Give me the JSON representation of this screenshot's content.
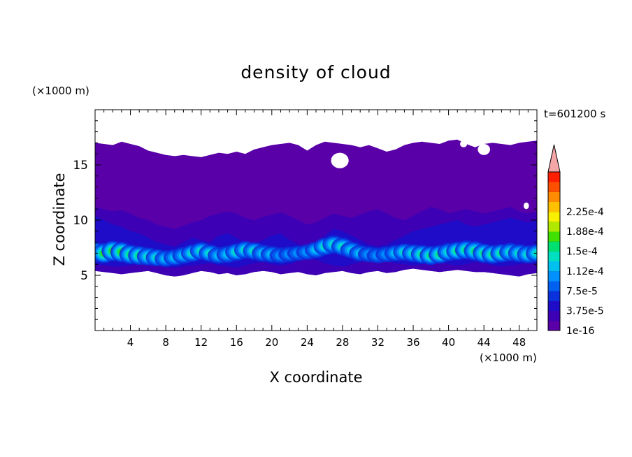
{
  "chart_data": {
    "type": "heatmap",
    "title": "density of cloud",
    "time_label": "t=601200 s",
    "xlabel": "X coordinate",
    "ylabel": "Z coordinate",
    "x_unit": "(×1000 m)",
    "y_unit": "(×1000 m)",
    "xlim": [
      0,
      50
    ],
    "ylim": [
      0,
      20
    ],
    "x_ticks": [
      4,
      8,
      12,
      16,
      20,
      24,
      28,
      32,
      36,
      40,
      44,
      48
    ],
    "y_ticks": [
      5,
      10,
      15
    ],
    "colorbar": {
      "levels": [
        "1e-16",
        "3.75e-5",
        "7.5e-5",
        "1.12e-4",
        "1.5e-4",
        "1.88e-4",
        "2.25e-4"
      ],
      "colors": [
        "#5a00a8",
        "#3e00b4",
        "#1e0cc8",
        "#0a32dc",
        "#0060f0",
        "#0090ff",
        "#00c0f0",
        "#00e0c0",
        "#00e070",
        "#40e000",
        "#b0e800",
        "#f8f000",
        "#ffc000",
        "#ff8c00",
        "#ff5000",
        "#ff1e00"
      ],
      "extend_color": "#f4a6a6"
    },
    "cloud": {
      "outer_top": [
        17.0,
        16.9,
        16.8,
        17.1,
        16.9,
        16.7,
        16.3,
        16.1,
        15.9,
        15.8,
        15.9,
        15.8,
        15.7,
        15.9,
        16.1,
        16.0,
        16.2,
        16.0,
        16.4,
        16.6,
        16.8,
        16.9,
        17.0,
        16.8,
        16.3,
        16.8,
        17.1,
        17.0,
        16.9,
        16.8,
        16.6,
        16.8,
        16.5,
        16.2,
        16.4,
        16.8,
        17.0,
        17.1,
        17.0,
        16.9,
        17.2,
        17.3,
        16.9,
        16.6,
        16.9,
        17.0,
        16.9,
        16.8,
        17.0,
        17.1,
        17.2
      ],
      "outer_bottom": [
        5.4,
        5.3,
        5.2,
        5.1,
        5.2,
        5.3,
        5.4,
        5.2,
        5.0,
        4.9,
        5.0,
        5.2,
        5.4,
        5.3,
        5.1,
        5.2,
        5.0,
        5.1,
        5.3,
        5.4,
        5.3,
        5.1,
        5.2,
        5.3,
        5.1,
        5.0,
        5.2,
        5.3,
        5.4,
        5.2,
        5.1,
        5.3,
        5.4,
        5.2,
        5.3,
        5.5,
        5.6,
        5.5,
        5.4,
        5.3,
        5.4,
        5.5,
        5.4,
        5.3,
        5.3,
        5.2,
        5.1,
        5.0,
        4.9,
        5.1,
        5.2
      ],
      "mid_top": [
        11.2,
        11.0,
        10.8,
        10.9,
        10.6,
        10.2,
        10.0,
        9.6,
        9.4,
        9.2,
        9.5,
        9.8,
        10.0,
        10.4,
        10.6,
        10.8,
        10.6,
        10.2,
        10.0,
        10.3,
        10.5,
        10.7,
        10.4,
        10.0,
        9.6,
        9.8,
        10.2,
        10.6,
        10.4,
        10.2,
        10.5,
        10.8,
        11.0,
        10.6,
        10.2,
        10.0,
        10.4,
        10.8,
        11.2,
        11.0,
        10.6,
        10.8,
        11.0,
        10.8,
        10.6,
        10.8,
        11.0,
        11.2,
        10.8,
        10.6,
        10.8
      ],
      "dense_top": [
        10.4,
        10.0,
        9.6,
        9.4,
        9.0,
        8.8,
        8.4,
        8.0,
        7.8,
        7.6,
        8.0,
        8.4,
        8.2,
        8.0,
        8.6,
        8.8,
        8.4,
        8.0,
        7.8,
        8.2,
        8.6,
        8.8,
        8.2,
        7.8,
        7.4,
        7.8,
        8.6,
        9.2,
        9.0,
        8.6,
        8.2,
        7.8,
        7.6,
        7.8,
        8.2,
        8.6,
        9.0,
        9.2,
        9.4,
        9.6,
        9.8,
        10.0,
        9.6,
        9.4,
        9.6,
        9.8,
        10.0,
        10.2,
        10.0,
        9.8,
        10.0
      ],
      "dense_bottom": [
        6.0,
        5.9,
        5.8,
        5.8,
        5.9,
        6.0,
        6.1,
        6.0,
        5.8,
        5.7,
        5.8,
        5.9,
        6.0,
        6.1,
        5.9,
        5.8,
        5.7,
        5.9,
        6.1,
        6.2,
        6.0,
        5.9,
        6.0,
        6.3,
        6.5,
        6.4,
        6.1,
        5.9,
        5.8,
        6.0,
        6.2,
        6.4,
        6.5,
        6.3,
        6.1,
        6.0,
        5.9,
        6.0,
        6.1,
        6.2,
        6.0,
        5.9,
        6.0,
        6.2,
        6.1,
        5.9,
        5.8,
        5.9,
        6.0,
        6.1,
        6.0
      ],
      "core_center": [
        7.1,
        7.0,
        7.2,
        7.1,
        6.9,
        6.8,
        6.7,
        6.6,
        6.5,
        6.6,
        6.8,
        7.0,
        7.2,
        7.0,
        6.8,
        6.9,
        7.1,
        7.3,
        7.2,
        7.0,
        6.9,
        6.8,
        6.9,
        7.0,
        7.1,
        7.3,
        7.6,
        7.8,
        7.6,
        7.3,
        7.0,
        6.9,
        6.8,
        6.9,
        7.0,
        7.1,
        7.0,
        6.9,
        6.8,
        6.9,
        7.1,
        7.2,
        7.3,
        7.2,
        7.0,
        6.9,
        7.0,
        7.1,
        7.0,
        6.9,
        7.0
      ],
      "core_intensity": [
        0.75,
        0.78,
        0.82,
        0.8,
        0.72,
        0.66,
        0.58,
        0.5,
        0.44,
        0.42,
        0.46,
        0.52,
        0.56,
        0.5,
        0.46,
        0.48,
        0.52,
        0.56,
        0.54,
        0.48,
        0.42,
        0.36,
        0.3,
        0.28,
        0.32,
        0.42,
        0.52,
        0.58,
        0.54,
        0.46,
        0.4,
        0.36,
        0.34,
        0.36,
        0.42,
        0.5,
        0.58,
        0.64,
        0.66,
        0.62,
        0.58,
        0.62,
        0.68,
        0.72,
        0.7,
        0.66,
        0.62,
        0.6,
        0.58,
        0.56,
        0.58
      ],
      "holes": [
        [
          27.7,
          15.4,
          1.0,
          0.7
        ],
        [
          44.0,
          16.4,
          0.7,
          0.5
        ],
        [
          41.7,
          16.9,
          0.4,
          0.3
        ],
        [
          48.8,
          11.3,
          0.3,
          0.3
        ]
      ]
    }
  }
}
